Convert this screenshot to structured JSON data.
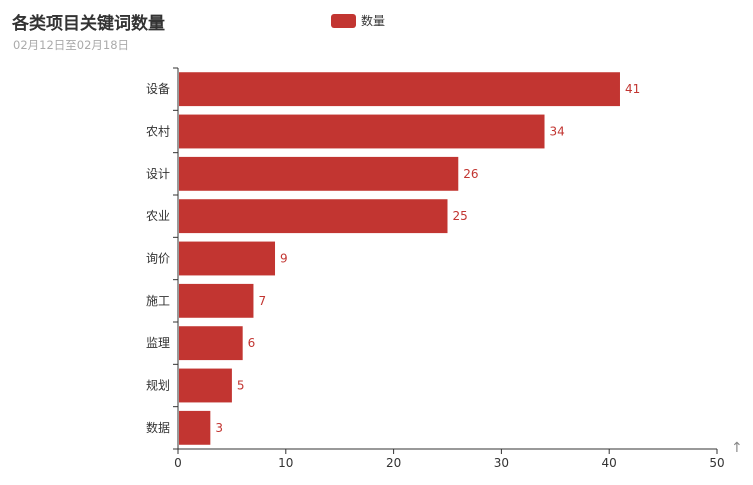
{
  "chart_data": {
    "type": "bar",
    "orientation": "horizontal",
    "title": "各类项目关键词数量",
    "subtitle": "02月12日至02月18日",
    "categories": [
      "设备",
      "农村",
      "设计",
      "农业",
      "询价",
      "施工",
      "监理",
      "规划",
      "数据"
    ],
    "series": [
      {
        "name": "数量",
        "values": [
          41,
          34,
          26,
          25,
          9,
          7,
          6,
          5,
          3
        ],
        "color": "#c23531"
      }
    ],
    "xlim": [
      0,
      50
    ],
    "xticks": [
      0,
      10,
      20,
      30,
      40,
      50
    ],
    "grid": false,
    "legend": "top-center",
    "data_labels": true
  },
  "toolbox": {
    "icon": "arrow-up-icon"
  }
}
